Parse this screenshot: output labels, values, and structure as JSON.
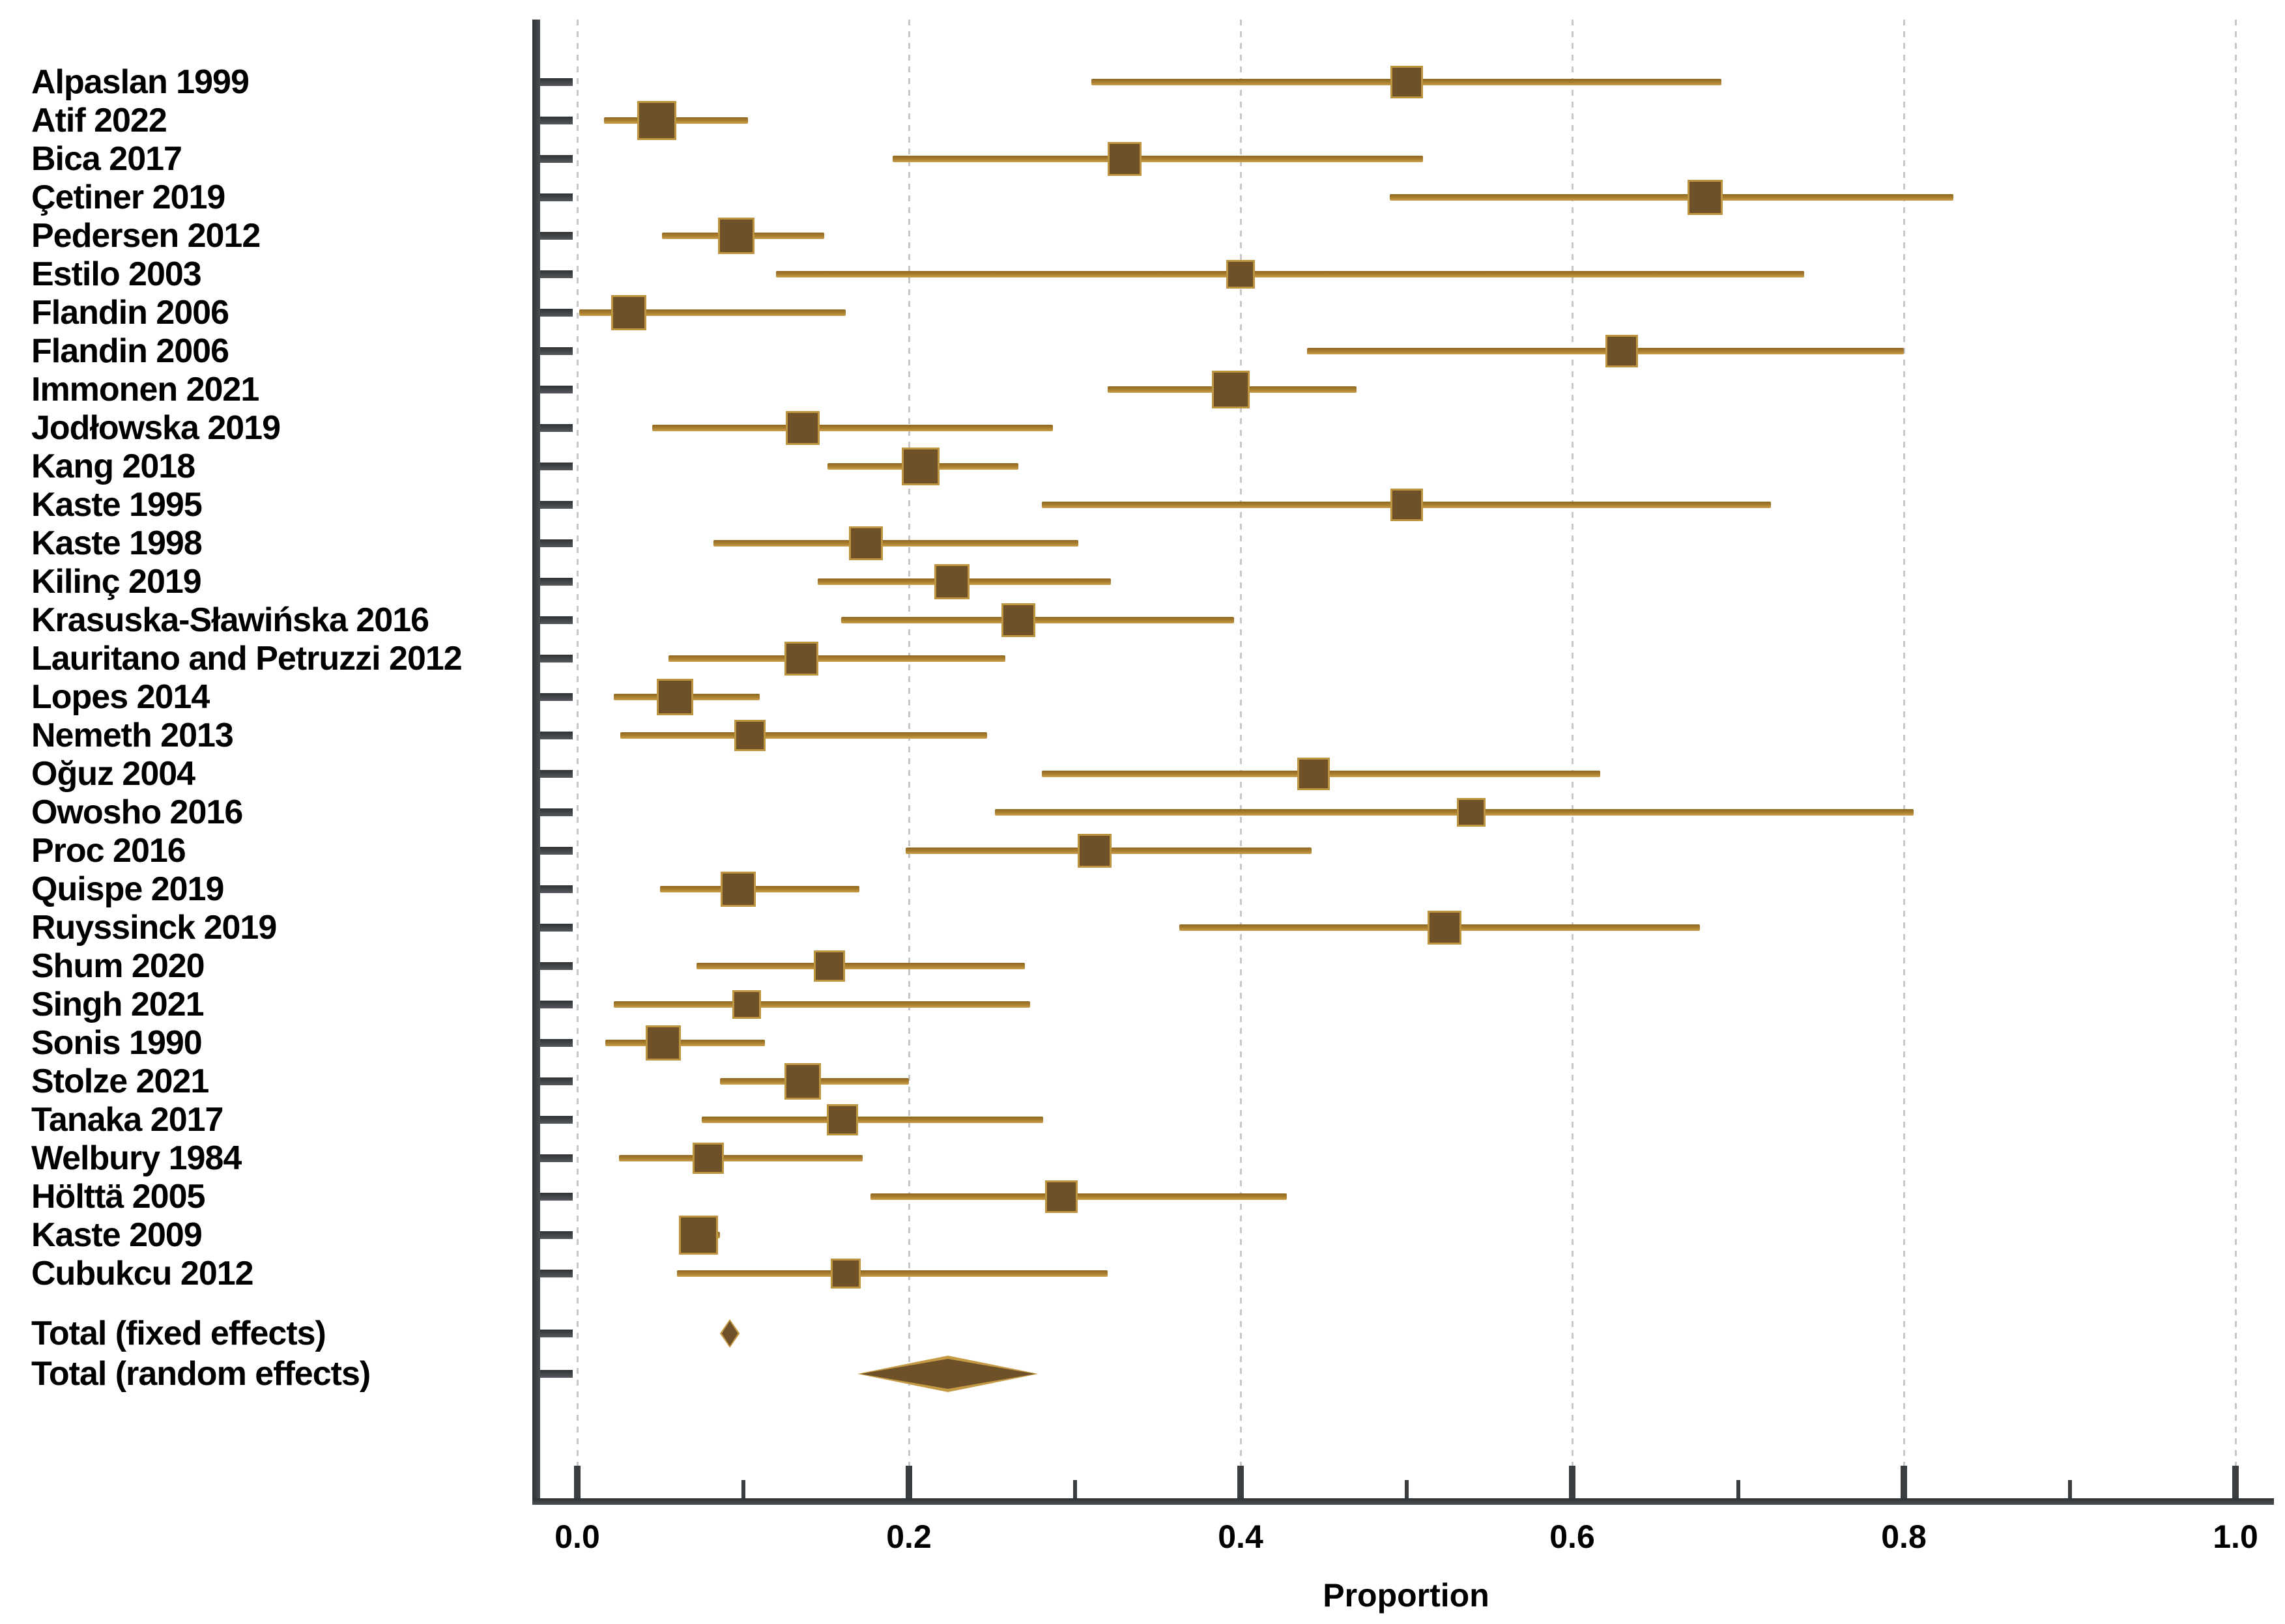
{
  "chart_data": {
    "type": "forest",
    "xlabel": "Proportion",
    "xlim": [
      0.0,
      1.0
    ],
    "grid": "vertical-dashed-at-major-ticks",
    "x_major_ticks": [
      0.0,
      0.2,
      0.4,
      0.6,
      0.8,
      1.0
    ],
    "x_major_tick_labels": [
      "0.0",
      "0.2",
      "0.4",
      "0.6",
      "0.8",
      "1.0"
    ],
    "x_minor_ticks": [
      0.1,
      0.3,
      0.5,
      0.7,
      0.9
    ],
    "studies": [
      {
        "label": "Alpaslan 1999",
        "est": 0.5,
        "lo": 0.31,
        "hi": 0.69,
        "size": 50
      },
      {
        "label": "Atif 2022",
        "est": 0.048,
        "lo": 0.016,
        "hi": 0.103,
        "size": 60
      },
      {
        "label": "Bica 2017",
        "est": 0.33,
        "lo": 0.19,
        "hi": 0.51,
        "size": 52
      },
      {
        "label": "Çetiner 2019",
        "est": 0.68,
        "lo": 0.49,
        "hi": 0.83,
        "size": 54
      },
      {
        "label": "Pedersen 2012",
        "est": 0.096,
        "lo": 0.051,
        "hi": 0.149,
        "size": 56
      },
      {
        "label": "Estilo 2003",
        "est": 0.4,
        "lo": 0.12,
        "hi": 0.74,
        "size": 44
      },
      {
        "label": "Flandin 2006",
        "est": 0.031,
        "lo": 0.001,
        "hi": 0.162,
        "size": 54
      },
      {
        "label": "Flandin 2006",
        "est": 0.63,
        "lo": 0.44,
        "hi": 0.8,
        "size": 50
      },
      {
        "label": "Immonen 2021",
        "est": 0.394,
        "lo": 0.32,
        "hi": 0.47,
        "size": 58
      },
      {
        "label": "Jodłowska 2019",
        "est": 0.136,
        "lo": 0.045,
        "hi": 0.287,
        "size": 52
      },
      {
        "label": "Kang 2018",
        "est": 0.207,
        "lo": 0.151,
        "hi": 0.266,
        "size": 58
      },
      {
        "label": "Kaste 1995",
        "est": 0.5,
        "lo": 0.28,
        "hi": 0.72,
        "size": 50
      },
      {
        "label": "Kaste 1998",
        "est": 0.174,
        "lo": 0.082,
        "hi": 0.302,
        "size": 52
      },
      {
        "label": "Kilinç 2019",
        "est": 0.226,
        "lo": 0.145,
        "hi": 0.322,
        "size": 54
      },
      {
        "label": "Krasuska-Sławińska 2016",
        "est": 0.266,
        "lo": 0.159,
        "hi": 0.396,
        "size": 52
      },
      {
        "label": "Lauritano and Petruzzi 2012",
        "est": 0.135,
        "lo": 0.055,
        "hi": 0.258,
        "size": 52
      },
      {
        "label": "Lopes 2014",
        "est": 0.059,
        "lo": 0.022,
        "hi": 0.11,
        "size": 56
      },
      {
        "label": "Nemeth 2013",
        "est": 0.104,
        "lo": 0.026,
        "hi": 0.247,
        "size": 48
      },
      {
        "label": "Oğuz 2004",
        "est": 0.444,
        "lo": 0.28,
        "hi": 0.617,
        "size": 50
      },
      {
        "label": "Owosho 2016",
        "est": 0.539,
        "lo": 0.252,
        "hi": 0.806,
        "size": 44
      },
      {
        "label": "Proc 2016",
        "est": 0.312,
        "lo": 0.198,
        "hi": 0.443,
        "size": 52
      },
      {
        "label": "Quispe 2019",
        "est": 0.097,
        "lo": 0.05,
        "hi": 0.17,
        "size": 54
      },
      {
        "label": "Ruyssinck 2019",
        "est": 0.523,
        "lo": 0.363,
        "hi": 0.677,
        "size": 52
      },
      {
        "label": "Shum 2020",
        "est": 0.152,
        "lo": 0.072,
        "hi": 0.27,
        "size": 48
      },
      {
        "label": "Singh 2021",
        "est": 0.102,
        "lo": 0.022,
        "hi": 0.273,
        "size": 44
      },
      {
        "label": "Sonis 1990",
        "est": 0.052,
        "lo": 0.017,
        "hi": 0.113,
        "size": 54
      },
      {
        "label": "Stolze 2021",
        "est": 0.136,
        "lo": 0.086,
        "hi": 0.2,
        "size": 56
      },
      {
        "label": "Tanaka 2017",
        "est": 0.16,
        "lo": 0.075,
        "hi": 0.281,
        "size": 48
      },
      {
        "label": "Welbury 1984",
        "est": 0.079,
        "lo": 0.025,
        "hi": 0.172,
        "size": 48
      },
      {
        "label": "Hölttä 2005",
        "est": 0.292,
        "lo": 0.177,
        "hi": 0.428,
        "size": 50
      },
      {
        "label": "Kaste 2009",
        "est": 0.073,
        "lo": 0.062,
        "hi": 0.086,
        "size": 60
      },
      {
        "label": "Cubukcu 2012",
        "est": 0.162,
        "lo": 0.06,
        "hi": 0.32,
        "size": 46
      }
    ],
    "totals": [
      {
        "label": "Total (fixed effects)",
        "est": 0.092,
        "lo": 0.086,
        "hi": 0.098,
        "height": 44
      },
      {
        "label": "Total (random effects)",
        "est": 0.223,
        "lo": 0.169,
        "hi": 0.278,
        "height": 56
      }
    ],
    "colors": {
      "marker_fill": "#6e5128",
      "marker_edge": "#bd9440",
      "ci_line": "#a87e2e",
      "axis": "#3a3e41",
      "grid": "#c7c7c7",
      "text": "#000000",
      "background": "#ffffff"
    }
  }
}
